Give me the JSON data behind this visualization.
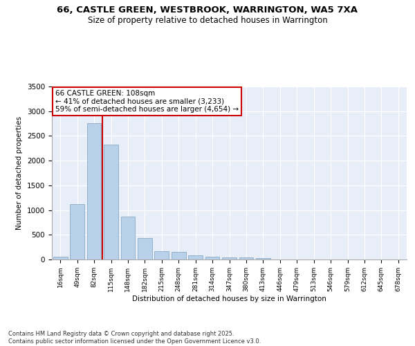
{
  "title1": "66, CASTLE GREEN, WESTBROOK, WARRINGTON, WA5 7XA",
  "title2": "Size of property relative to detached houses in Warrington",
  "xlabel": "Distribution of detached houses by size in Warrington",
  "ylabel": "Number of detached properties",
  "categories": [
    "16sqm",
    "49sqm",
    "82sqm",
    "115sqm",
    "148sqm",
    "182sqm",
    "215sqm",
    "248sqm",
    "281sqm",
    "314sqm",
    "347sqm",
    "380sqm",
    "413sqm",
    "446sqm",
    "479sqm",
    "513sqm",
    "546sqm",
    "579sqm",
    "612sqm",
    "645sqm",
    "678sqm"
  ],
  "values": [
    50,
    1120,
    2760,
    2330,
    870,
    430,
    165,
    160,
    85,
    60,
    45,
    40,
    30,
    5,
    5,
    5,
    0,
    0,
    0,
    0,
    0
  ],
  "bar_color": "#b8d0e8",
  "bar_edge_color": "#7aa0c0",
  "vline_x": 2.5,
  "vline_color": "#cc0000",
  "annotation_text": "66 CASTLE GREEN: 108sqm\n← 41% of detached houses are smaller (3,233)\n59% of semi-detached houses are larger (4,654) →",
  "annotation_box_color": "#ffffff",
  "annotation_box_edge": "#cc0000",
  "ylim": [
    0,
    3500
  ],
  "yticks": [
    0,
    500,
    1000,
    1500,
    2000,
    2500,
    3000,
    3500
  ],
  "bg_color": "#e8eef8",
  "footer1": "Contains HM Land Registry data © Crown copyright and database right 2025.",
  "footer2": "Contains public sector information licensed under the Open Government Licence v3.0."
}
